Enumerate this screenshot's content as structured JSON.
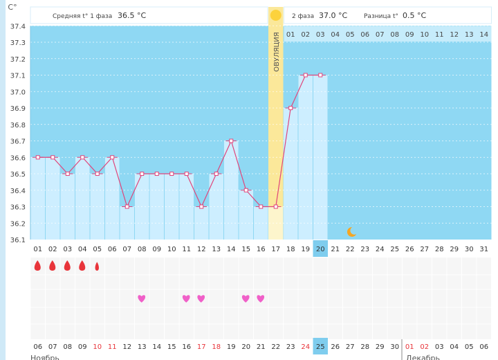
{
  "header": {
    "unit_label": "C°",
    "phase1_label": "Средняя t° 1 фаза",
    "phase1_value": "36.5 °C",
    "phase2_label": "2 фаза",
    "phase2_value": "37.0 °C",
    "diff_label": "Разница t°",
    "diff_value": "0.5 °C"
  },
  "ovulation_label": "ОВУЛЯЦИЯ",
  "months": {
    "first": "Ноябрь",
    "second": "Декабрь"
  },
  "colors": {
    "phase1_bg": "#8fd8f3",
    "phase2_bg": "#8fd8f3",
    "bar_fill": "#cdeeff",
    "line": "#e0457b",
    "ovulation": "#fbe89a",
    "today": "#7fcdee",
    "heart": "#f060c8",
    "drop": "#e8343a",
    "weekend": "#e8343a"
  },
  "chart_data": {
    "type": "bar",
    "title": "",
    "ylabel": "C°",
    "ylim": [
      36.1,
      37.4
    ],
    "y_ticks": [
      "36.1",
      "36.2",
      "36.3",
      "36.4",
      "36.5",
      "36.6",
      "36.7",
      "36.8",
      "36.9",
      "37.0",
      "37.1",
      "37.2",
      "37.3",
      "37.4"
    ],
    "cycle_days": [
      "01",
      "02",
      "03",
      "04",
      "05",
      "06",
      "07",
      "08",
      "09",
      "10",
      "11",
      "12",
      "13",
      "14",
      "15",
      "16",
      "17",
      "18",
      "19",
      "20",
      "21",
      "22",
      "23",
      "24",
      "25",
      "26",
      "27",
      "28",
      "29",
      "30",
      "31"
    ],
    "temperatures": [
      36.6,
      36.6,
      36.5,
      36.6,
      36.5,
      36.6,
      36.3,
      36.5,
      36.5,
      36.5,
      36.5,
      36.3,
      36.5,
      36.7,
      36.4,
      36.3,
      36.3,
      36.9,
      37.1,
      37.1
    ],
    "ovulation_day": 17,
    "today_day": 20,
    "moon_day": 22,
    "phase2_day_labels": [
      "01",
      "02",
      "03",
      "04",
      "05",
      "06",
      "07",
      "08",
      "09",
      "10",
      "11",
      "12",
      "13",
      "14"
    ],
    "dates": [
      "06",
      "07",
      "08",
      "09",
      "10",
      "11",
      "12",
      "13",
      "14",
      "15",
      "16",
      "17",
      "18",
      "19",
      "20",
      "21",
      "22",
      "23",
      "24",
      "25",
      "26",
      "27",
      "28",
      "29",
      "30",
      "01",
      "02",
      "03",
      "04",
      "05",
      "06"
    ],
    "weekend_dates_idx": [
      4,
      5,
      11,
      12,
      18,
      25,
      26
    ],
    "today_date_idx": 19,
    "bleeding": [
      {
        "day": 1,
        "size": "large"
      },
      {
        "day": 2,
        "size": "large"
      },
      {
        "day": 3,
        "size": "large"
      },
      {
        "day": 4,
        "size": "large"
      },
      {
        "day": 5,
        "size": "small"
      }
    ],
    "hearts": [
      8,
      11,
      12,
      15,
      16
    ],
    "grid": true
  }
}
